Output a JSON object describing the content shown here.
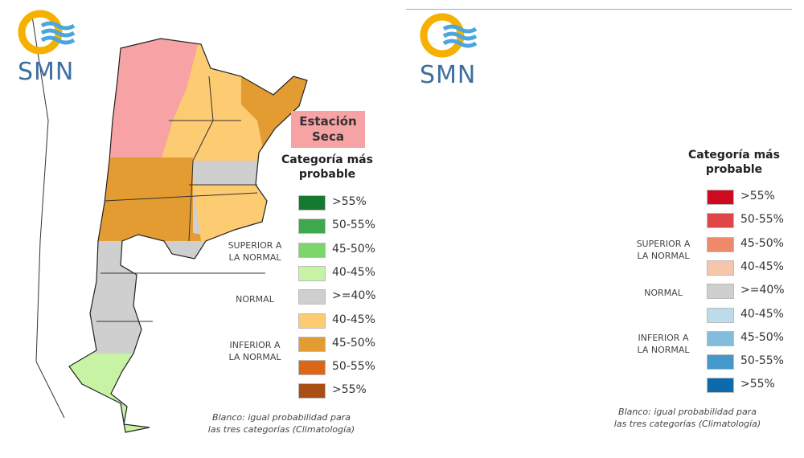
{
  "logo_text": "SMN",
  "left_panel": {
    "season_label_line1": "Estación",
    "season_label_line2": "Seca",
    "legend_title_line1": "Categoría más",
    "legend_title_line2": "probable",
    "categories": {
      "superior_1": "SUPERIOR A",
      "superior_2": "LA NORMAL",
      "normal": "NORMAL",
      "inferior_1": "INFERIOR A",
      "inferior_2": "LA NORMAL"
    },
    "legend": [
      {
        "label": ">55%",
        "color": "#147a32"
      },
      {
        "label": "50-55%",
        "color": "#3ea84c"
      },
      {
        "label": "45-50%",
        "color": "#7cd66a"
      },
      {
        "label": "40-45%",
        "color": "#c6f3a4"
      },
      {
        "label": ">=40%",
        "color": "#cfcfcf"
      },
      {
        "label": "40-45%",
        "color": "#fccb72"
      },
      {
        "label": "45-50%",
        "color": "#e39c32"
      },
      {
        "label": "50-55%",
        "color": "#dc6618"
      },
      {
        "label": ">55%",
        "color": "#a94f15"
      }
    ],
    "note_line1": "Blanco: igual probabilidad para",
    "note_line2": "las tres categorías (Climatología)"
  },
  "right_panel": {
    "legend_title_line1": "Categoría más",
    "legend_title_line2": "probable",
    "categories": {
      "superior_1": "SUPERIOR A",
      "superior_2": "LA NORMAL",
      "normal": "NORMAL",
      "inferior_1": "INFERIOR A",
      "inferior_2": "LA NORMAL"
    },
    "legend": [
      {
        "label": ">55%",
        "color": "#cc0a20"
      },
      {
        "label": "50-55%",
        "color": "#e0454a"
      },
      {
        "label": "45-50%",
        "color": "#ee8a6a"
      },
      {
        "label": "40-45%",
        "color": "#f7c5ab"
      },
      {
        "label": ">=40%",
        "color": "#cfcfcf"
      },
      {
        "label": "40-45%",
        "color": "#bcdcec"
      },
      {
        "label": "45-50%",
        "color": "#83bddc"
      },
      {
        "label": "50-55%",
        "color": "#4498cc"
      },
      {
        "label": ">55%",
        "color": "#0d6aad"
      }
    ],
    "note_line1": "Blanco: igual probabilidad para",
    "note_line2": "las tres categorías (Climatología)"
  }
}
